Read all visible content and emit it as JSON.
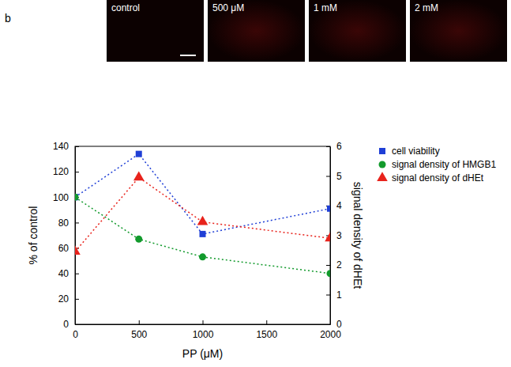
{
  "panels": {
    "letter": "b",
    "labels": [
      "control",
      "500 μM",
      "1 mM",
      "2 mM"
    ]
  },
  "chart_data": {
    "type": "line",
    "x_label": "PP (μM)",
    "y_label": "% of control",
    "y2_label": "signal density of dHEt",
    "x": [
      0,
      500,
      1000,
      2000
    ],
    "xlim": [
      0,
      2000
    ],
    "xticks": [
      0,
      500,
      1000,
      1500,
      2000
    ],
    "ylim": [
      0,
      140
    ],
    "yticks": [
      0,
      20,
      40,
      60,
      80,
      100,
      120,
      140
    ],
    "y2lim": [
      0,
      6
    ],
    "y2ticks": [
      0,
      1,
      2,
      3,
      4,
      5,
      6
    ],
    "grid": false,
    "legend": "right",
    "line_style": "dotted",
    "series": [
      {
        "name": "cell viability",
        "color": "#1f3fd6",
        "marker": "square",
        "values": [
          100,
          134,
          71,
          91
        ]
      },
      {
        "name": "signal density of HMGB1",
        "color": "#129a2c",
        "marker": "circle",
        "values": [
          100,
          67,
          53,
          40
        ]
      },
      {
        "name": "signal density of dHEt",
        "color": "#e8231c",
        "marker": "triangle",
        "axis": "y2",
        "values": [
          2.45,
          4.95,
          3.45,
          2.9
        ]
      }
    ]
  }
}
